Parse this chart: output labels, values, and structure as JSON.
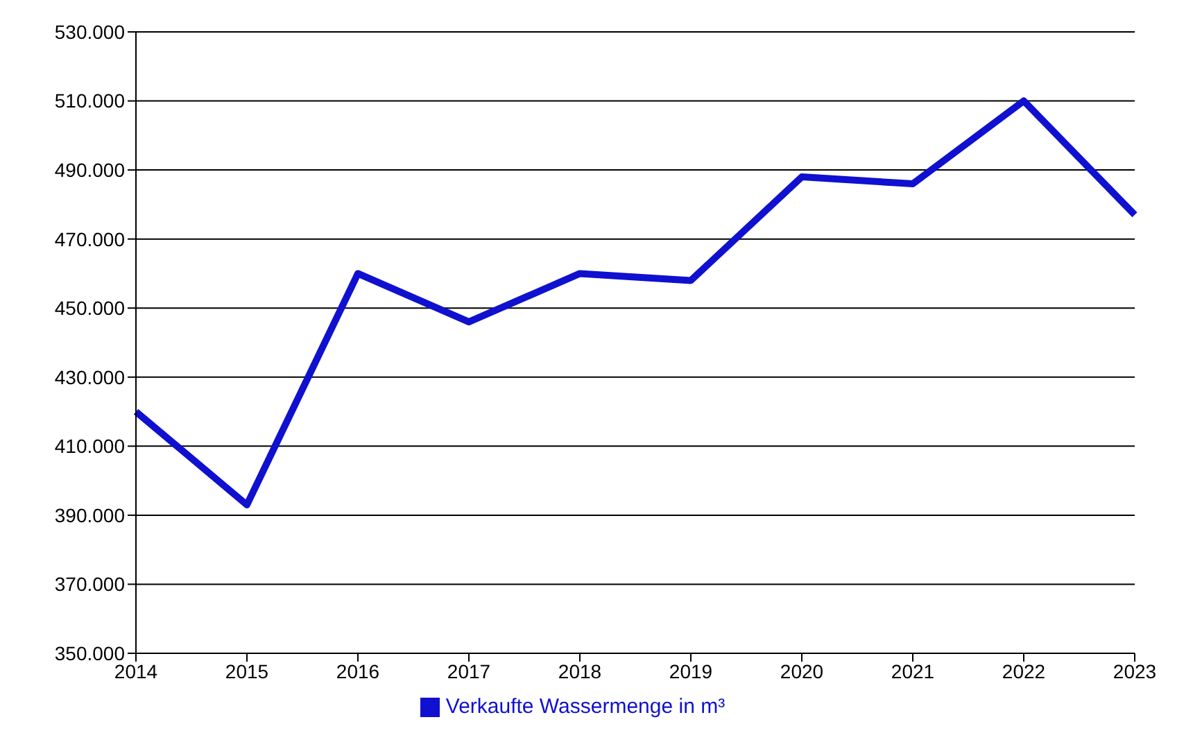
{
  "chart_data": {
    "type": "line",
    "categories": [
      "2014",
      "2015",
      "2016",
      "2017",
      "2018",
      "2019",
      "2020",
      "2021",
      "2022",
      "2023"
    ],
    "series": [
      {
        "name": "Verkaufte Wassermenge in m³",
        "color": "#1010d0",
        "values": [
          420000,
          393000,
          460000,
          446000,
          460000,
          458000,
          488000,
          486000,
          510000,
          477000
        ]
      }
    ],
    "ylim": [
      350000,
      530000
    ],
    "yticks": [
      {
        "value": 350000,
        "label": "350.000"
      },
      {
        "value": 370000,
        "label": "370.000"
      },
      {
        "value": 390000,
        "label": "390.000"
      },
      {
        "value": 410000,
        "label": "410.000"
      },
      {
        "value": 430000,
        "label": "430.000"
      },
      {
        "value": 450000,
        "label": "450.000"
      },
      {
        "value": 470000,
        "label": "470.000"
      },
      {
        "value": 490000,
        "label": "490.000"
      },
      {
        "value": 510000,
        "label": "510.000"
      },
      {
        "value": 530000,
        "label": "530.000"
      }
    ],
    "grid": "y",
    "legend": "bottom",
    "marker": "none",
    "line_style": "solid"
  }
}
